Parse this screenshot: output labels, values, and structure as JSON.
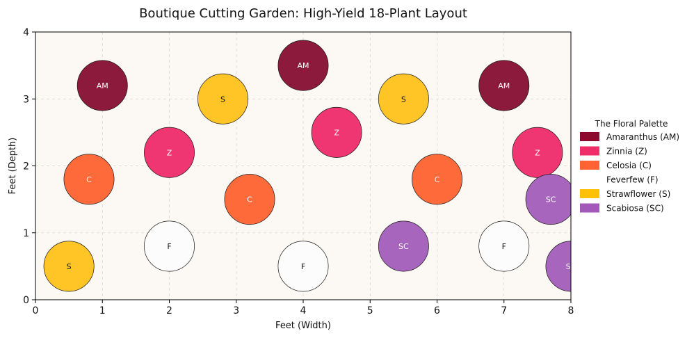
{
  "chart_data": {
    "type": "scatter",
    "title": "Boutique Cutting Garden: High-Yield 18-Plant Layout",
    "xlabel": "Feet (Width)",
    "ylabel": "Feet (Depth)",
    "xlim": [
      0,
      8
    ],
    "ylim": [
      0,
      4
    ],
    "x_ticks": [
      "0",
      "1",
      "2",
      "3",
      "4",
      "5",
      "6",
      "7",
      "8"
    ],
    "y_ticks": [
      "0",
      "1",
      "2",
      "3",
      "4"
    ],
    "grid": true,
    "plot_background": "#fcf8f3",
    "legend": {
      "title": "The Floral Palette",
      "placement": "right",
      "entries": [
        {
          "label": "Amaranthus (AM)",
          "color": "#8b0a2e"
        },
        {
          "label": "Zinnia (Z)",
          "color": "#ef2d66"
        },
        {
          "label": "Celosia (C)",
          "color": "#ff6233"
        },
        {
          "label": "Feverfew (F)",
          "color": "#ffffff"
        },
        {
          "label": "Strawflower (S)",
          "color": "#ffc107"
        },
        {
          "label": "Scabiosa (SC)",
          "color": "#a259b9"
        }
      ]
    },
    "plant_radius_ft": 0.375,
    "plants": [
      {
        "code": "AM",
        "x": 1.0,
        "y": 3.2,
        "color": "#8b1a3c",
        "text_color": "#ffffff"
      },
      {
        "code": "AM",
        "x": 4.0,
        "y": 3.5,
        "color": "#8b1a3c",
        "text_color": "#ffffff"
      },
      {
        "code": "AM",
        "x": 7.0,
        "y": 3.2,
        "color": "#8b1a3c",
        "text_color": "#ffffff"
      },
      {
        "code": "Z",
        "x": 2.0,
        "y": 2.2,
        "color": "#ef3672",
        "text_color": "#ffffff"
      },
      {
        "code": "Z",
        "x": 4.5,
        "y": 2.5,
        "color": "#ef3672",
        "text_color": "#ffffff"
      },
      {
        "code": "Z",
        "x": 7.5,
        "y": 2.2,
        "color": "#ef3672",
        "text_color": "#ffffff"
      },
      {
        "code": "C",
        "x": 0.8,
        "y": 1.8,
        "color": "#ff6a3a",
        "text_color": "#ffffff"
      },
      {
        "code": "C",
        "x": 3.2,
        "y": 1.5,
        "color": "#ff6a3a",
        "text_color": "#ffffff"
      },
      {
        "code": "C",
        "x": 6.0,
        "y": 1.8,
        "color": "#ff6a3a",
        "text_color": "#ffffff"
      },
      {
        "code": "F",
        "x": 2.0,
        "y": 0.8,
        "color": "#fcfcfc",
        "text_color": "#111111"
      },
      {
        "code": "F",
        "x": 4.0,
        "y": 0.5,
        "color": "#fcfcfc",
        "text_color": "#111111"
      },
      {
        "code": "F",
        "x": 7.0,
        "y": 0.8,
        "color": "#fcfcfc",
        "text_color": "#111111"
      },
      {
        "code": "S",
        "x": 2.8,
        "y": 3.0,
        "color": "#ffc526",
        "text_color": "#111111"
      },
      {
        "code": "S",
        "x": 5.5,
        "y": 3.0,
        "color": "#ffc526",
        "text_color": "#111111"
      },
      {
        "code": "S",
        "x": 0.5,
        "y": 0.5,
        "color": "#ffc526",
        "text_color": "#111111"
      },
      {
        "code": "SC",
        "x": 7.7,
        "y": 1.5,
        "color": "#a865bd",
        "text_color": "#ffffff"
      },
      {
        "code": "SC",
        "x": 5.5,
        "y": 0.8,
        "color": "#a865bd",
        "text_color": "#ffffff"
      },
      {
        "code": "SC",
        "x": 8.0,
        "y": 0.5,
        "color": "#a865bd",
        "text_color": "#ffffff"
      }
    ]
  }
}
